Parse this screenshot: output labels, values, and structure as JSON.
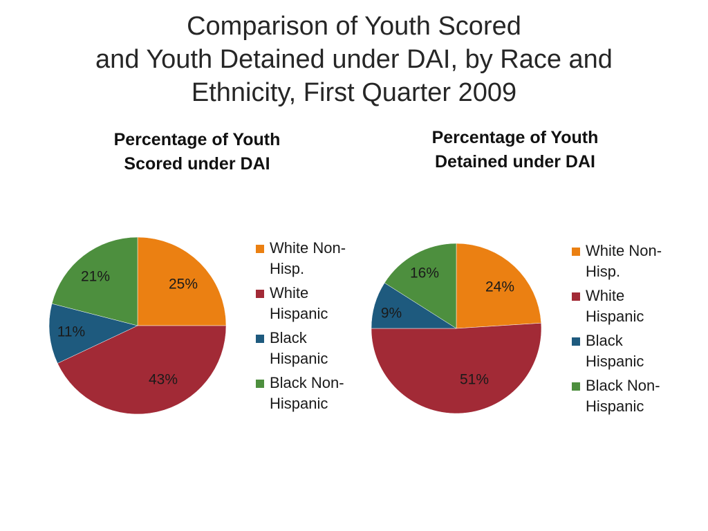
{
  "slide": {
    "title_lines": [
      "Comparison of Youth Scored",
      "and Youth Detained under DAI, by Race and",
      "Ethnicity, First Quarter 2009"
    ]
  },
  "colors": {
    "White Non-Hisp.": "#EB8012",
    "White Hispanic": "#A22A36",
    "Black Hispanic": "#1E5A7E",
    "Black Non-Hispanic": "#4D8F3E"
  },
  "chart_data": [
    {
      "type": "pie",
      "title_lines": [
        "Percentage of Youth",
        "Scored under DAI"
      ],
      "categories": [
        "White Non-Hisp.",
        "White Hispanic",
        "Black Hispanic",
        "Black Non-Hispanic"
      ],
      "legend_lines": [
        [
          "White Non-",
          "Hisp."
        ],
        [
          "White",
          "Hispanic"
        ],
        [
          "Black",
          "Hispanic"
        ],
        [
          "Black Non-",
          "Hispanic"
        ]
      ],
      "values": [
        25,
        43,
        11,
        21
      ],
      "value_labels": [
        "25%",
        "43%",
        "11%",
        "21%"
      ],
      "legend": "right"
    },
    {
      "type": "pie",
      "title_lines": [
        "Percentage of Youth",
        "Detained under DAI"
      ],
      "categories": [
        "White Non-Hisp.",
        "White Hispanic",
        "Black Hispanic",
        "Black Non-Hispanic"
      ],
      "legend_lines": [
        [
          "White Non-",
          "Hisp."
        ],
        [
          "White",
          "Hispanic"
        ],
        [
          "Black",
          "Hispanic"
        ],
        [
          "Black Non-",
          "Hispanic"
        ]
      ],
      "values": [
        24,
        51,
        9,
        16
      ],
      "value_labels": [
        "24%",
        "51%",
        "9%",
        "16%"
      ],
      "legend": "right"
    }
  ]
}
